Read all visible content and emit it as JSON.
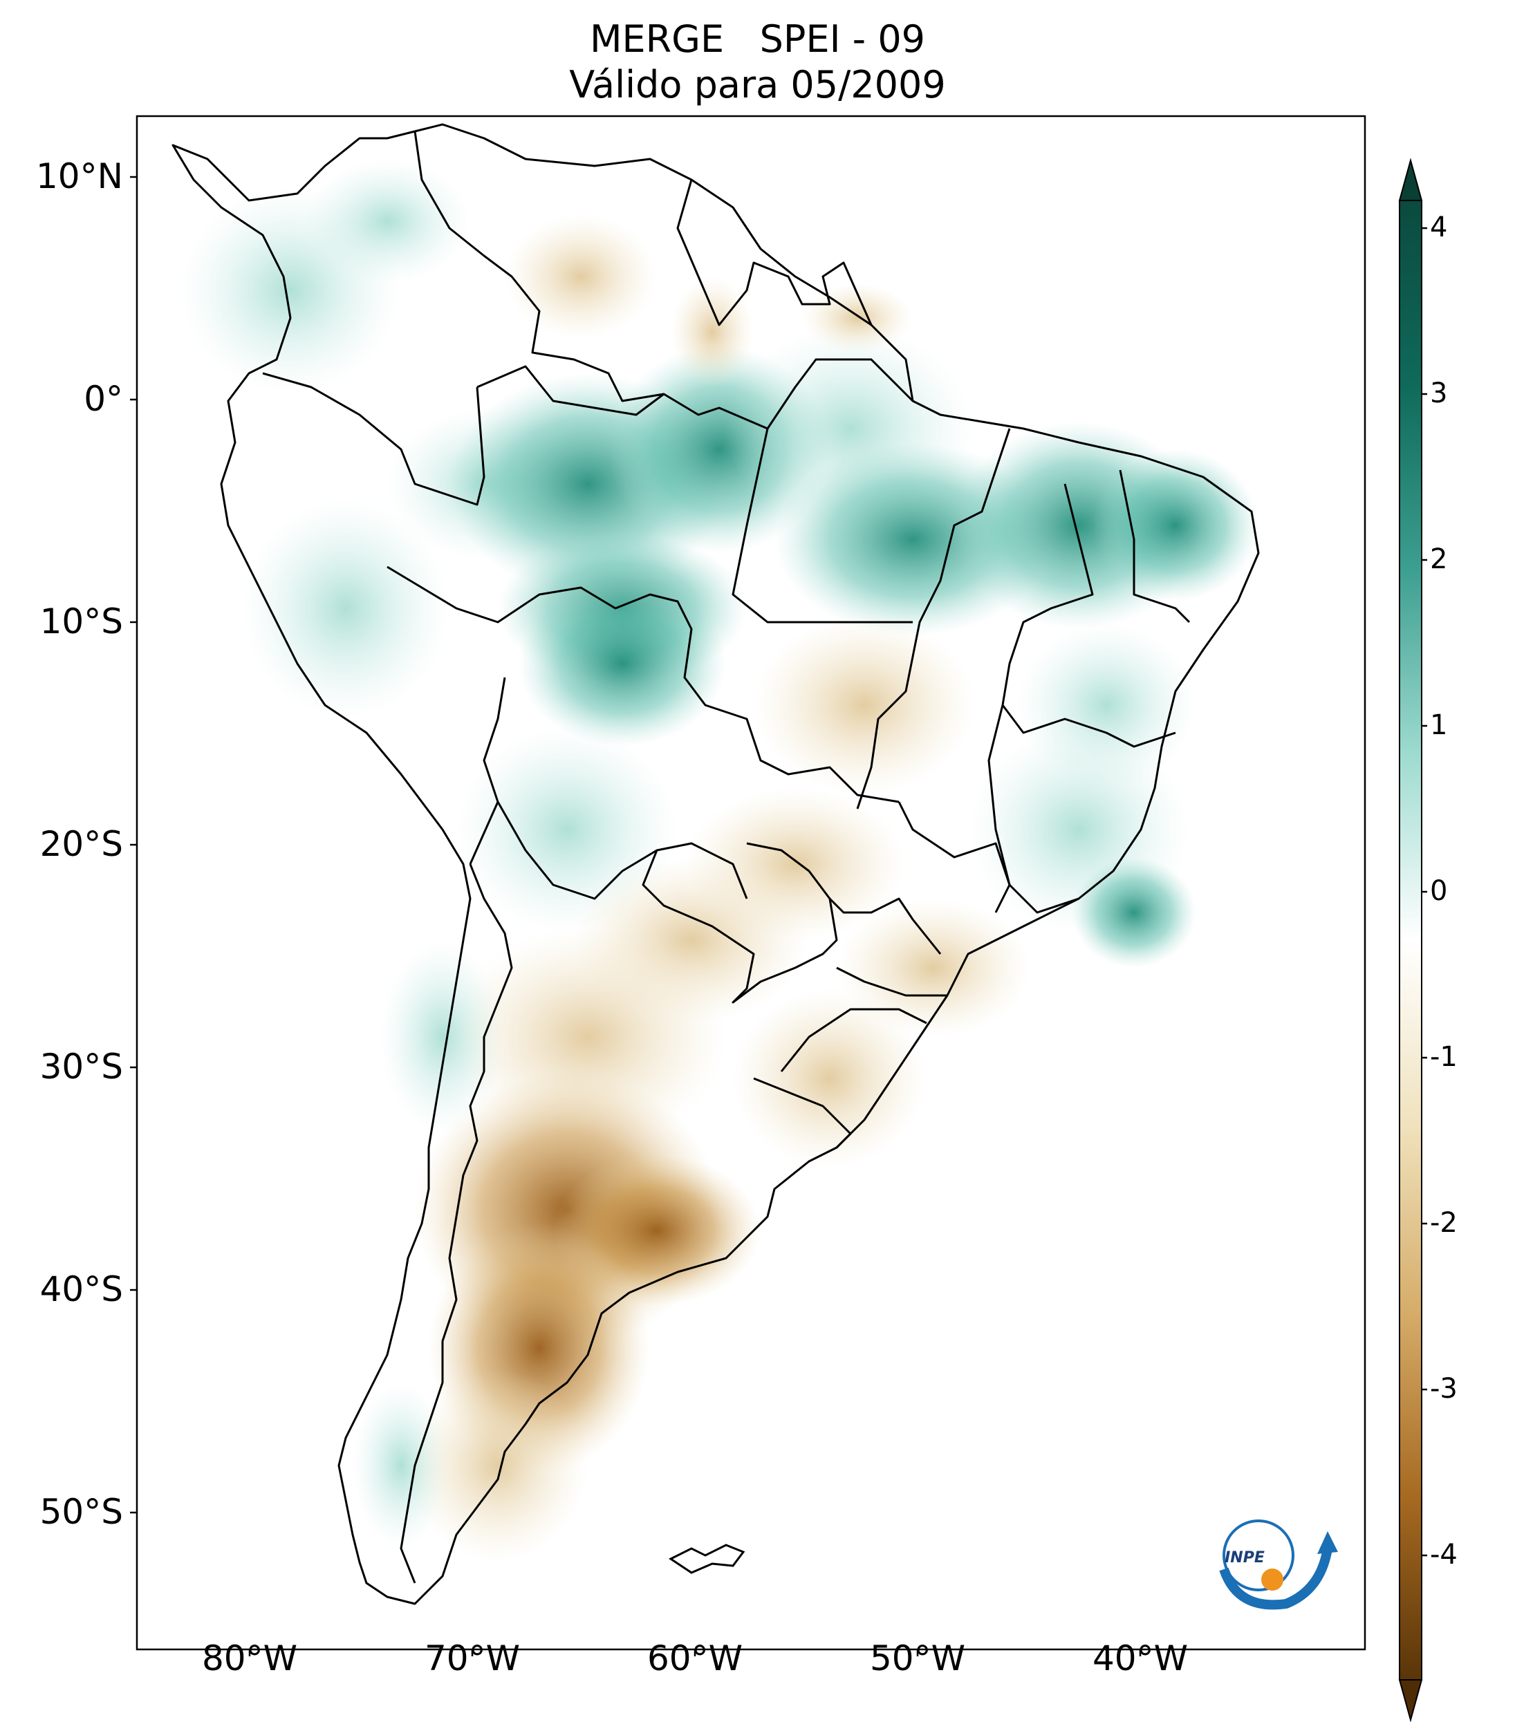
{
  "title": {
    "line1": "MERGE   SPEI - 09",
    "line2": "Válido para 05/2009"
  },
  "map": {
    "lat_labels": [
      "10°N",
      "0°",
      "10°S",
      "20°S",
      "30°S",
      "40°S",
      "50°S"
    ],
    "lon_labels": [
      "80°W",
      "70°W",
      "60°W",
      "50°W",
      "40°W"
    ]
  },
  "colorbar": {
    "ticks": [
      "4",
      "3",
      "2",
      "1",
      "0",
      "-1",
      "-2",
      "-3",
      "-4"
    ],
    "colors": {
      "max": "#08463a",
      "high": "#1b7d6b",
      "mid_high": "#80cdc1",
      "neutral": "#ffffff",
      "mid_low": "#e8d5a6",
      "low": "#b07a2e",
      "min": "#4a2a08"
    }
  },
  "logo": {
    "text": "INPE"
  }
}
